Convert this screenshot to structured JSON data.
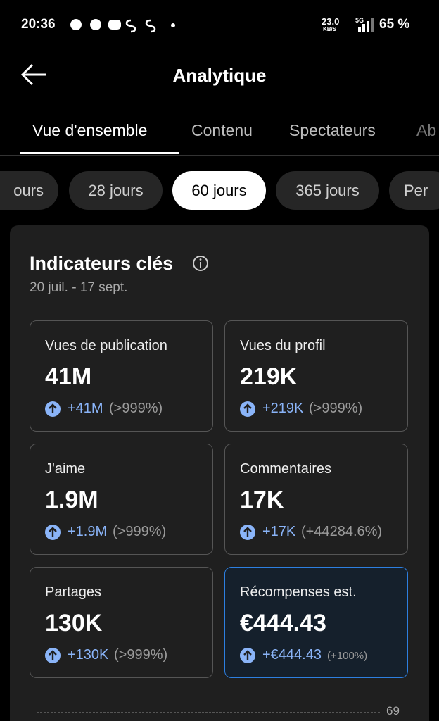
{
  "status_bar": {
    "time": "20:36",
    "network_speed": "23.0",
    "speed_unit": "KB/S",
    "network": "5G",
    "battery": "65 %"
  },
  "header": {
    "title": "Analytique"
  },
  "tabs": [
    "Vue d'ensemble",
    "Contenu",
    "Spectateurs",
    "Ab"
  ],
  "periods": [
    "ours",
    "28 jours",
    "60 jours",
    "365 jours",
    "Per"
  ],
  "card": {
    "title": "Indicateurs clés",
    "date_range": "20 juil. - 17 sept.",
    "metrics": [
      {
        "label": "Vues de publication",
        "value": "41M",
        "change": "+41M",
        "pct": "(>999%)"
      },
      {
        "label": "Vues du profil",
        "value": "219K",
        "change": "+219K",
        "pct": "(>999%)"
      },
      {
        "label": "J'aime",
        "value": "1.9M",
        "change": "+1.9M",
        "pct": "(>999%)"
      },
      {
        "label": "Commentaires",
        "value": "17K",
        "change": "+17K",
        "pct": "(+44284.6%)"
      },
      {
        "label": "Partages",
        "value": "130K",
        "change": "+130K",
        "pct": "(>999%)"
      },
      {
        "label": "Récompenses est.",
        "value": "€444.43",
        "change": "+€444.43",
        "pct": "(+100%)"
      }
    ]
  },
  "chart": {
    "tick": "69"
  }
}
